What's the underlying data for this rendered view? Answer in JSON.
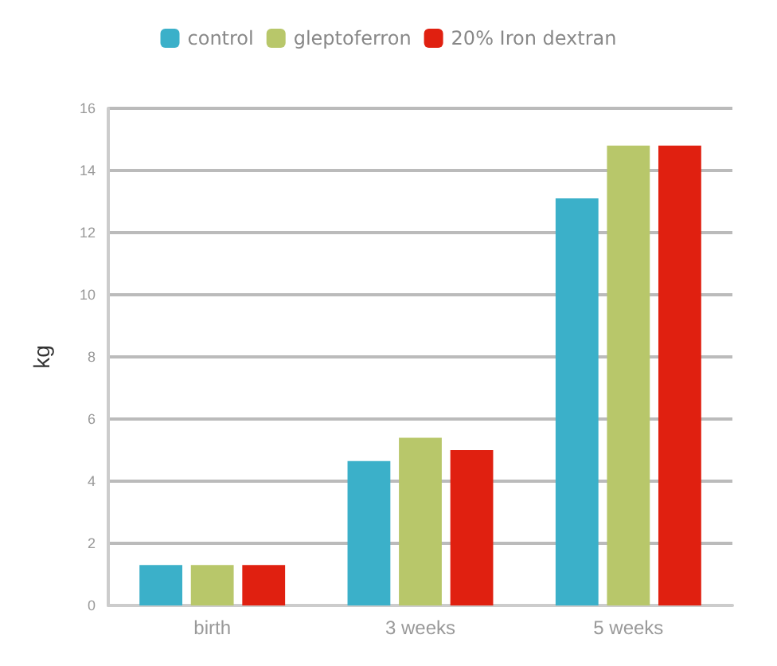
{
  "chart_data": {
    "type": "bar",
    "ylabel": "kg",
    "categories": [
      "birth",
      "3 weeks",
      "5 weeks"
    ],
    "series": [
      {
        "name": "control",
        "color": "#3bb0c9",
        "values": [
          1.3,
          4.65,
          13.1
        ]
      },
      {
        "name": "gleptoferron",
        "color": "#b8c76a",
        "values": [
          1.3,
          5.4,
          14.8
        ]
      },
      {
        "name": "20% Iron dextran",
        "color": "#e02010",
        "values": [
          1.3,
          5.0,
          14.8
        ]
      }
    ],
    "ylim": [
      0,
      16
    ],
    "yticks": [
      0,
      2,
      4,
      6,
      8,
      10,
      12,
      14,
      16
    ],
    "grid": "y",
    "legend": "top"
  }
}
